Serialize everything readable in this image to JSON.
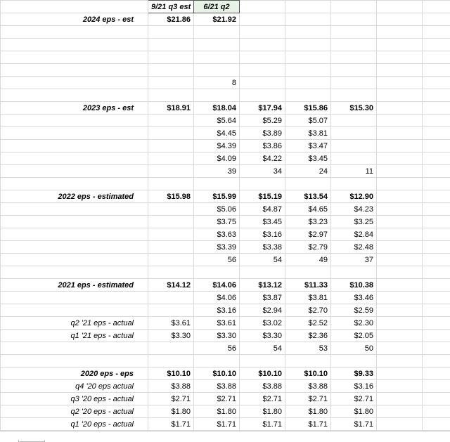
{
  "headers": {
    "c1": "9/21 q3 est",
    "c2": "6/21 q2"
  },
  "rows": [
    {
      "label": "2024 eps - est",
      "bold": true,
      "c1": "$21.86",
      "c2": "$21.92"
    },
    {
      "blank": true
    },
    {
      "blank": true
    },
    {
      "blank": true
    },
    {
      "blank": true
    },
    {
      "c2": "8"
    },
    {
      "blank": true
    },
    {
      "label": "2023 eps - est",
      "bold": true,
      "c1": "$18.91",
      "c2": "$18.04",
      "c3": "$17.94",
      "c4": "$15.86",
      "c5": "$15.30"
    },
    {
      "c2": "$5.64",
      "c3": "$5.29",
      "c4": "$5.07"
    },
    {
      "c2": "$4.45",
      "c3": "$3.89",
      "c4": "$3.81"
    },
    {
      "c2": "$4.39",
      "c3": "$3.86",
      "c4": "$3.47"
    },
    {
      "c2": "$4.09",
      "c3": "$4.22",
      "c4": "$3.45"
    },
    {
      "c2": "39",
      "c3": "34",
      "c4": "24",
      "c5": "11"
    },
    {
      "blank": true
    },
    {
      "label": "2022 eps - estimated",
      "bold": true,
      "c1": "$15.98",
      "c2": "$15.99",
      "c3": "$15.19",
      "c4": "$13.54",
      "c5": "$12.90"
    },
    {
      "c2": "$5.06",
      "c3": "$4.87",
      "c4": "$4.65",
      "c5": "$4.23"
    },
    {
      "c2": "$3.75",
      "c3": "$3.45",
      "c4": "$3.23",
      "c5": "$3.25"
    },
    {
      "c2": "$3.63",
      "c3": "$3.16",
      "c4": "$2.97",
      "c5": "$2.84"
    },
    {
      "c2": "$3.39",
      "c3": "$3.38",
      "c4": "$2.79",
      "c5": "$2.48"
    },
    {
      "c2": "56",
      "c3": "54",
      "c4": "49",
      "c5": "37"
    },
    {
      "blank": true
    },
    {
      "label": "2021 eps - estimated",
      "bold": true,
      "c1": "$14.12",
      "c2": "$14.06",
      "c3": "$13.12",
      "c4": "$11.33",
      "c5": "$10.38"
    },
    {
      "c2": "$4.06",
      "c3": "$3.87",
      "c4": "$3.81",
      "c5": "$3.46"
    },
    {
      "c2": "$3.16",
      "c3": "$2.94",
      "c4": "$2.70",
      "c5": "$2.59"
    },
    {
      "label": "q2 '21 eps - actual",
      "c1": "$3.61",
      "c2": "$3.61",
      "c3": "$3.02",
      "c4": "$2.52",
      "c5": "$2.30"
    },
    {
      "label": "q1 '21 eps - actual",
      "c1": "$3.30",
      "c2": "$3.30",
      "c3": "$3.30",
      "c4": "$2.36",
      "c5": "$2.05"
    },
    {
      "c2": "56",
      "c3": "54",
      "c4": "53",
      "c5": "50"
    },
    {
      "blank": true
    },
    {
      "label": "2020 eps - eps",
      "bold": true,
      "c1": "$10.10",
      "c2": "$10.10",
      "c3": "$10.10",
      "c4": "$10.10",
      "c5": "$9.33"
    },
    {
      "label": "q4 '20 eps actual",
      "c1": "$3.88",
      "c2": "$3.88",
      "c3": "$3.88",
      "c4": "$3.88",
      "c5": "$3.16"
    },
    {
      "label": "q3 '20 eps - actual",
      "c1": "$2.71",
      "c2": "$2.71",
      "c3": "$2.71",
      "c4": "$2.71",
      "c5": "$2.71"
    },
    {
      "label": "q2 '20 eps - actual",
      "c1": "$1.80",
      "c2": "$1.80",
      "c3": "$1.80",
      "c4": "$1.80",
      "c5": "$1.80"
    },
    {
      "label": "q1 '20 eps - actual",
      "c1": "$1.71",
      "c2": "$1.71",
      "c3": "$1.71",
      "c4": "$1.71",
      "c5": "$1.71"
    }
  ],
  "sheetBar": {
    "tab1": " "
  }
}
